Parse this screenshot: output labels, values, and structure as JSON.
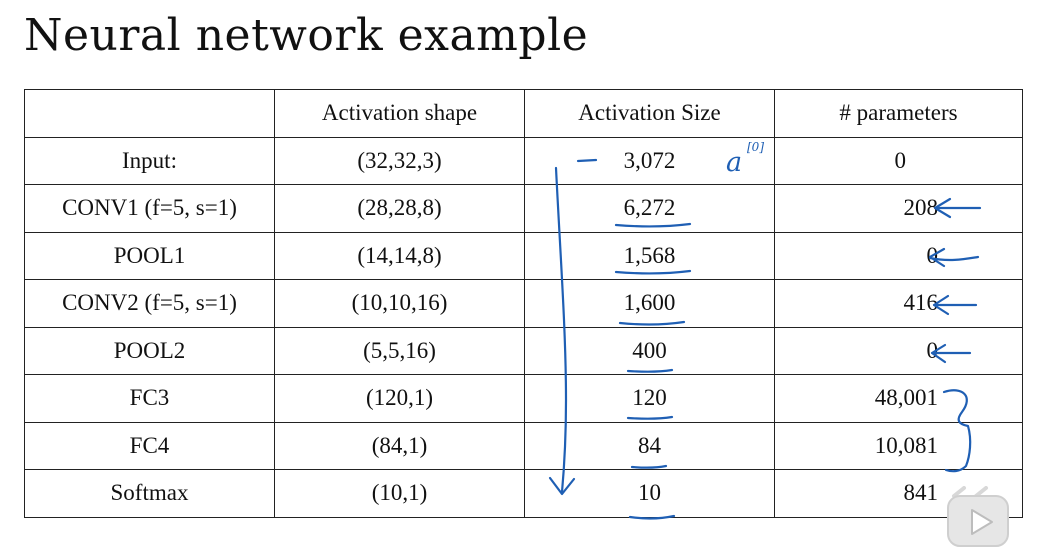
{
  "title": "Neural network example",
  "table": {
    "headers": [
      "",
      "Activation shape",
      "Activation Size",
      "# parameters"
    ],
    "rows": [
      {
        "layer": "Input:",
        "shape": "(32,32,3)",
        "size": "3,072",
        "params": "0"
      },
      {
        "layer": "CONV1 (f=5, s=1)",
        "shape": "(28,28,8)",
        "size": "6,272",
        "params": "208"
      },
      {
        "layer": "POOL1",
        "shape": "(14,14,8)",
        "size": "1,568",
        "params": "0"
      },
      {
        "layer": "CONV2  (f=5, s=1)",
        "shape": "(10,10,16)",
        "size": "1,600",
        "params": "416"
      },
      {
        "layer": "POOL2",
        "shape": "(5,5,16)",
        "size": "400",
        "params": "0"
      },
      {
        "layer": "FC3",
        "shape": "(120,1)",
        "size": "120",
        "params": "48,001"
      },
      {
        "layer": "FC4",
        "shape": "(84,1)",
        "size": "84",
        "params": "10,081"
      },
      {
        "layer": "Softmax",
        "shape": "(10,1)",
        "size": "10",
        "params": "841"
      }
    ]
  },
  "annotations": {
    "input_note": "a",
    "input_note_sup": "[0]",
    "ink_color": "#1f5fb4"
  },
  "player": {
    "logo_icon": "play-button-icon"
  }
}
